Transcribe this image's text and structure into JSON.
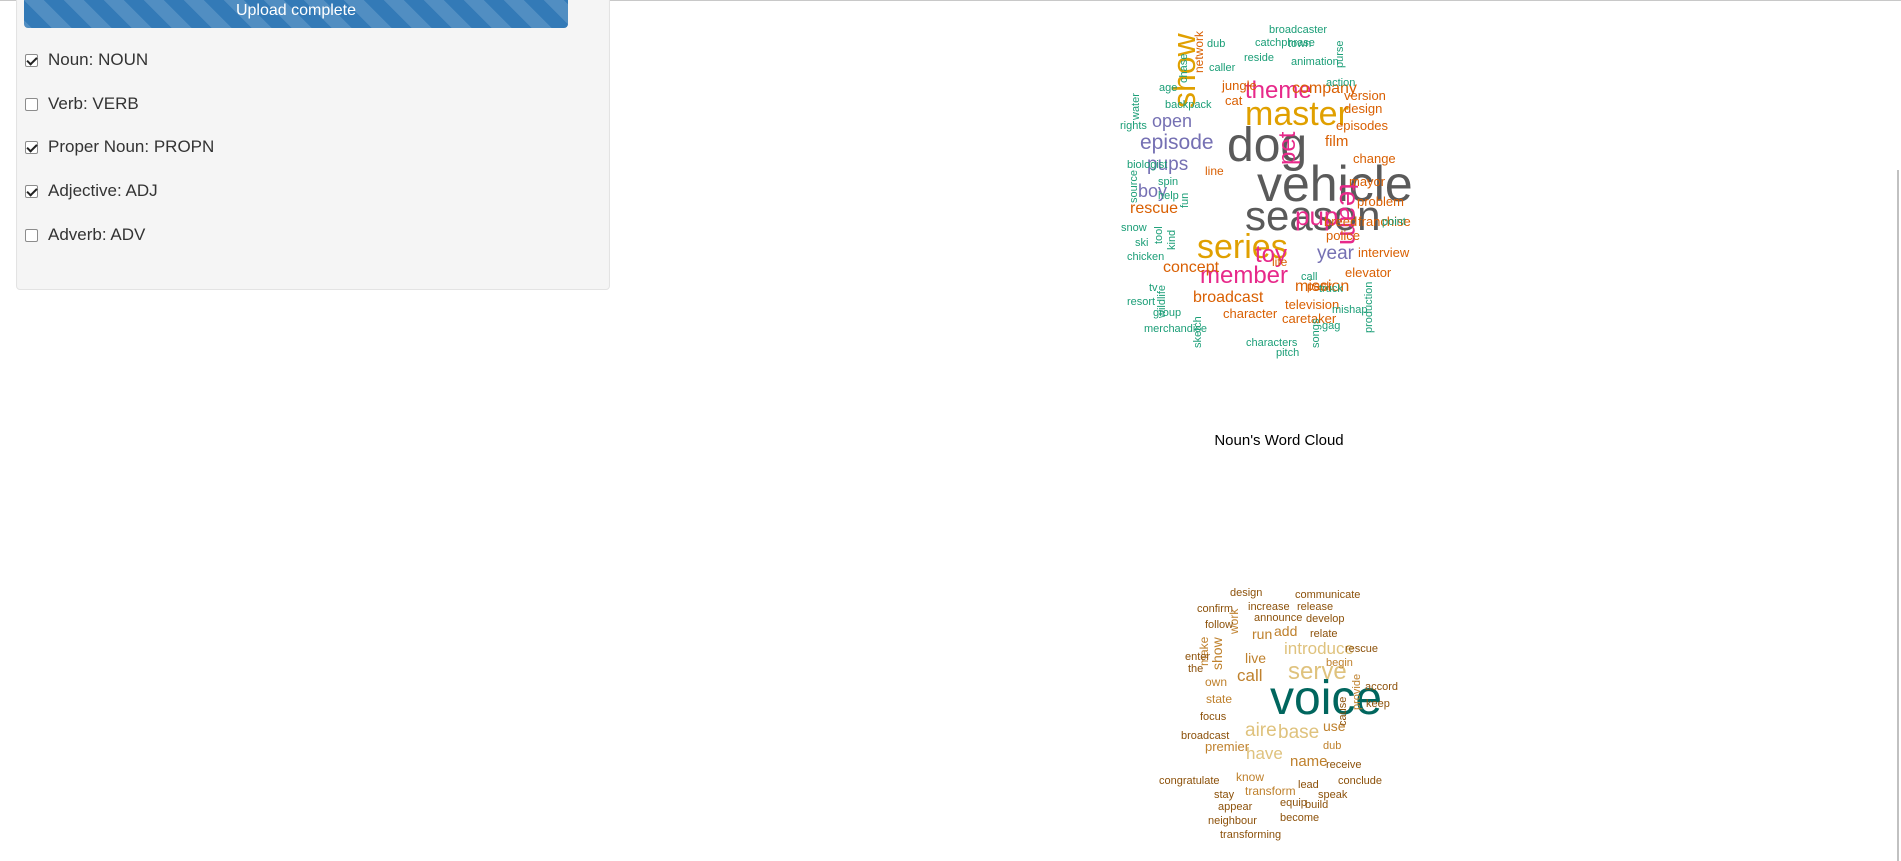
{
  "upload": {
    "status_text": "Upload complete",
    "progress": 1.0
  },
  "pos_filters": [
    {
      "label": "Noun: NOUN",
      "checked": true
    },
    {
      "label": "Verb: VERB",
      "checked": false
    },
    {
      "label": "Proper Noun: PROPN",
      "checked": true
    },
    {
      "label": "Adjective: ADJ",
      "checked": true
    },
    {
      "label": "Adverb: ADV",
      "checked": false
    }
  ],
  "noun_cloud": {
    "caption": "Noun's Word Cloud",
    "colors": {
      "grey": "#5a5a5a",
      "orange": "#e0a000",
      "magenta": "#e7298a",
      "purple": "#7570b3",
      "red_orange": "#d95f02",
      "teal": "#1b9e77"
    },
    "words": [
      {
        "text": "vehicle",
        "color": "grey"
      },
      {
        "text": "season",
        "color": "grey"
      },
      {
        "text": "dog",
        "color": "grey"
      },
      {
        "text": "master",
        "color": "orange"
      },
      {
        "text": "series",
        "color": "orange"
      },
      {
        "text": "show",
        "color": "orange"
      },
      {
        "text": "theme",
        "color": "magenta"
      },
      {
        "text": "pup",
        "color": "magenta"
      },
      {
        "text": "member",
        "color": "magenta"
      },
      {
        "text": "toy",
        "color": "magenta"
      },
      {
        "text": "team",
        "color": "magenta"
      },
      {
        "text": "pet",
        "color": "magenta"
      },
      {
        "text": "episode",
        "color": "purple"
      },
      {
        "text": "pups",
        "color": "purple"
      },
      {
        "text": "open",
        "color": "purple"
      },
      {
        "text": "boy",
        "color": "purple"
      },
      {
        "text": "year",
        "color": "purple"
      },
      {
        "text": "company",
        "color": "red_orange"
      },
      {
        "text": "concept",
        "color": "red_orange"
      },
      {
        "text": "broadcast",
        "color": "red_orange"
      },
      {
        "text": "mission",
        "color": "red_orange"
      },
      {
        "text": "rescue",
        "color": "red_orange"
      },
      {
        "text": "film",
        "color": "red_orange"
      },
      {
        "text": "jungle",
        "color": "red_orange"
      },
      {
        "text": "cat",
        "color": "red_orange"
      },
      {
        "text": "episodes",
        "color": "red_orange"
      },
      {
        "text": "change",
        "color": "red_orange"
      },
      {
        "text": "mayor",
        "color": "red_orange"
      },
      {
        "text": "problem",
        "color": "red_orange"
      },
      {
        "text": "franchise",
        "color": "red_orange"
      },
      {
        "text": "breed",
        "color": "red_orange"
      },
      {
        "text": "police",
        "color": "red_orange"
      },
      {
        "text": "interview",
        "color": "red_orange"
      },
      {
        "text": "elevator",
        "color": "red_orange"
      },
      {
        "text": "television",
        "color": "red_orange"
      },
      {
        "text": "character",
        "color": "red_orange"
      },
      {
        "text": "caretaker",
        "color": "red_orange"
      },
      {
        "text": "version",
        "color": "red_orange"
      },
      {
        "text": "design",
        "color": "red_orange"
      },
      {
        "text": "line",
        "color": "red_orange"
      },
      {
        "text": "life",
        "color": "red_orange"
      },
      {
        "text": "pack",
        "color": "red_orange"
      },
      {
        "text": "network",
        "color": "red_orange"
      },
      {
        "text": "broadcaster",
        "color": "teal"
      },
      {
        "text": "catchphrase",
        "color": "teal"
      },
      {
        "text": "town",
        "color": "teal"
      },
      {
        "text": "dub",
        "color": "teal"
      },
      {
        "text": "caller",
        "color": "teal"
      },
      {
        "text": "reside",
        "color": "teal"
      },
      {
        "text": "animation",
        "color": "teal"
      },
      {
        "text": "purse",
        "color": "teal"
      },
      {
        "text": "chase",
        "color": "teal"
      },
      {
        "text": "age",
        "color": "teal"
      },
      {
        "text": "action",
        "color": "teal"
      },
      {
        "text": "backpack",
        "color": "teal"
      },
      {
        "text": "water",
        "color": "teal"
      },
      {
        "text": "rights",
        "color": "teal"
      },
      {
        "text": "biologist",
        "color": "teal"
      },
      {
        "text": "spin",
        "color": "teal"
      },
      {
        "text": "help",
        "color": "teal"
      },
      {
        "text": "source",
        "color": "teal"
      },
      {
        "text": "fun",
        "color": "teal"
      },
      {
        "text": "snow",
        "color": "teal"
      },
      {
        "text": "tool",
        "color": "teal"
      },
      {
        "text": "ski",
        "color": "teal"
      },
      {
        "text": "kind",
        "color": "teal"
      },
      {
        "text": "chicken",
        "color": "teal"
      },
      {
        "text": "point",
        "color": "teal"
      },
      {
        "text": "call",
        "color": "teal"
      },
      {
        "text": "truck",
        "color": "teal"
      },
      {
        "text": "tv",
        "color": "teal"
      },
      {
        "text": "resort",
        "color": "teal"
      },
      {
        "text": "wildlife",
        "color": "teal"
      },
      {
        "text": "group",
        "color": "teal"
      },
      {
        "text": "mishap",
        "color": "teal"
      },
      {
        "text": "production",
        "color": "teal"
      },
      {
        "text": "merchandise",
        "color": "teal"
      },
      {
        "text": "gag",
        "color": "teal"
      },
      {
        "text": "characters",
        "color": "teal"
      },
      {
        "text": "pitch",
        "color": "teal"
      },
      {
        "text": "songs",
        "color": "teal"
      },
      {
        "text": "sketch",
        "color": "teal"
      }
    ]
  },
  "verb_cloud": {
    "colors": {
      "dark_teal": "#01665e",
      "tan": "#dfc27d",
      "gold": "#bf812d",
      "brown": "#8c510a"
    },
    "words": [
      {
        "text": "voice",
        "color": "dark_teal"
      },
      {
        "text": "serve",
        "color": "tan"
      },
      {
        "text": "introduce",
        "color": "tan"
      },
      {
        "text": "aire",
        "color": "tan"
      },
      {
        "text": "base",
        "color": "tan"
      },
      {
        "text": "have",
        "color": "tan"
      },
      {
        "text": "call",
        "color": "gold"
      },
      {
        "text": "live",
        "color": "gold"
      },
      {
        "text": "add",
        "color": "gold"
      },
      {
        "text": "run",
        "color": "gold"
      },
      {
        "text": "show",
        "color": "gold"
      },
      {
        "text": "make",
        "color": "gold"
      },
      {
        "text": "work",
        "color": "gold"
      },
      {
        "text": "own",
        "color": "gold"
      },
      {
        "text": "state",
        "color": "gold"
      },
      {
        "text": "premier",
        "color": "gold"
      },
      {
        "text": "use",
        "color": "gold"
      },
      {
        "text": "name",
        "color": "gold"
      },
      {
        "text": "know",
        "color": "gold"
      },
      {
        "text": "transform",
        "color": "gold"
      },
      {
        "text": "begin",
        "color": "gold"
      },
      {
        "text": "provide",
        "color": "gold"
      },
      {
        "text": "dub",
        "color": "gold"
      },
      {
        "text": "design",
        "color": "brown"
      },
      {
        "text": "communicate",
        "color": "brown"
      },
      {
        "text": "confirm",
        "color": "brown"
      },
      {
        "text": "increase",
        "color": "brown"
      },
      {
        "text": "release",
        "color": "brown"
      },
      {
        "text": "follow",
        "color": "brown"
      },
      {
        "text": "announce",
        "color": "brown"
      },
      {
        "text": "develop",
        "color": "brown"
      },
      {
        "text": "relate",
        "color": "brown"
      },
      {
        "text": "rescue",
        "color": "brown"
      },
      {
        "text": "enter",
        "color": "brown"
      },
      {
        "text": "the",
        "color": "brown"
      },
      {
        "text": "accord",
        "color": "brown"
      },
      {
        "text": "keep",
        "color": "brown"
      },
      {
        "text": "focus",
        "color": "brown"
      },
      {
        "text": "cause",
        "color": "brown"
      },
      {
        "text": "broadcast",
        "color": "brown"
      },
      {
        "text": "receive",
        "color": "brown"
      },
      {
        "text": "congratulate",
        "color": "brown"
      },
      {
        "text": "lead",
        "color": "brown"
      },
      {
        "text": "conclude",
        "color": "brown"
      },
      {
        "text": "stay",
        "color": "brown"
      },
      {
        "text": "speak",
        "color": "brown"
      },
      {
        "text": "appear",
        "color": "brown"
      },
      {
        "text": "equip",
        "color": "brown"
      },
      {
        "text": "build",
        "color": "brown"
      },
      {
        "text": "neighbour",
        "color": "brown"
      },
      {
        "text": "become",
        "color": "brown"
      },
      {
        "text": "transforming",
        "color": "brown"
      }
    ]
  }
}
